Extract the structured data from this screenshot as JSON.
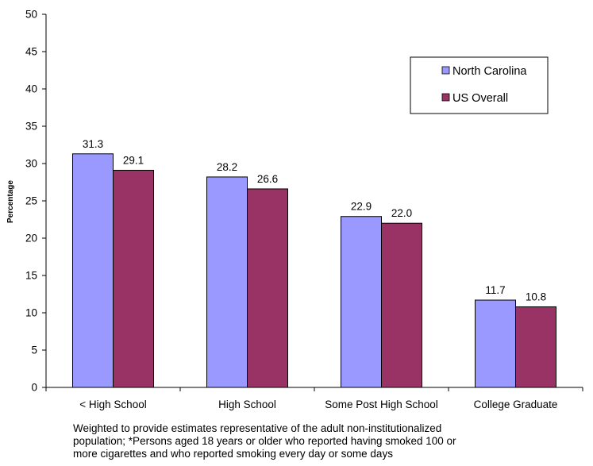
{
  "chart_data": {
    "type": "bar",
    "title": "",
    "xlabel": "",
    "ylabel": "Percentage",
    "ylim": [
      0,
      50
    ],
    "ytick_step": 5,
    "grid": false,
    "legend_position": "top-right",
    "categories": [
      "< High School",
      "High School",
      "Some Post High School",
      "College Graduate"
    ],
    "series": [
      {
        "name": "North Carolina",
        "color": "#9999ff",
        "values": [
          31.3,
          28.2,
          22.9,
          11.7
        ]
      },
      {
        "name": "US Overall",
        "color": "#993366",
        "values": [
          29.1,
          26.6,
          22.0,
          10.8
        ]
      }
    ]
  },
  "footnote": "Weighted to provide estimates representative of the adult non-institutionalized\npopulation; *Persons aged 18 years or older who reported having smoked 100 or\nmore cigarettes and who reported smoking every day or some days"
}
